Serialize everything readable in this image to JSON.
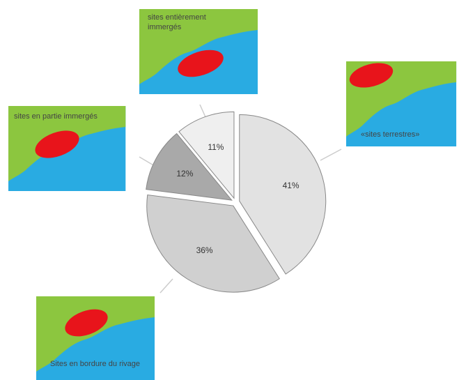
{
  "chart_data": {
    "type": "pie",
    "categories": [
      "«sites terrestres»",
      "Sites en bordure du rivage",
      "sites en partie immergés",
      "sites entièrement immergés"
    ],
    "values": [
      41,
      36,
      12,
      11
    ],
    "value_labels": [
      "41%",
      "36%",
      "12%",
      "11%"
    ],
    "colors": [
      "#e2e2e2",
      "#d0d0d0",
      "#a9a9a9",
      "#efefef"
    ]
  }
}
